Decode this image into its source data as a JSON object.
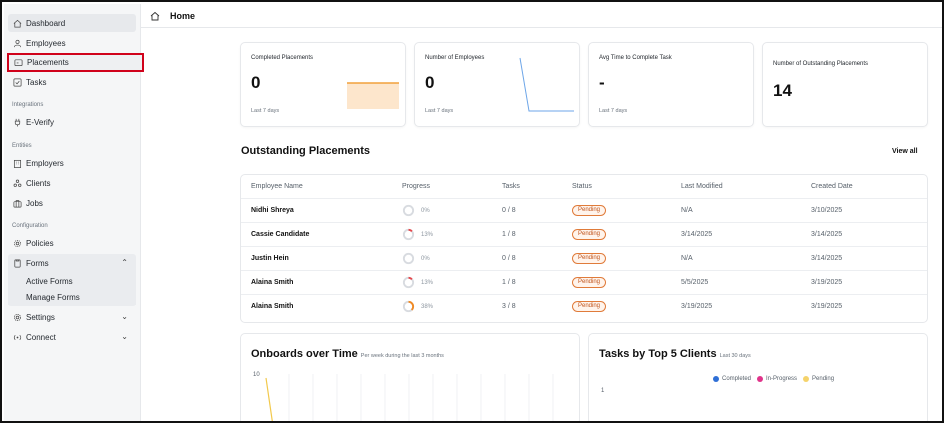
{
  "sidebar": {
    "items": [
      {
        "label": "Dashboard",
        "icon": "home-icon"
      },
      {
        "label": "Employees",
        "icon": "user-icon"
      },
      {
        "label": "Placements",
        "icon": "placement-icon"
      },
      {
        "label": "Tasks",
        "icon": "checkbox-icon"
      }
    ],
    "integrations_heading": "Integrations",
    "everify_label": "E-Verify",
    "entities_heading": "Entities",
    "entities": [
      {
        "label": "Employers",
        "icon": "building-icon"
      },
      {
        "label": "Clients",
        "icon": "clients-icon"
      },
      {
        "label": "Jobs",
        "icon": "jobs-icon"
      }
    ],
    "configuration_heading": "Configuration",
    "policies_label": "Policies",
    "forms_label": "Forms",
    "forms_sub": [
      "Active Forms",
      "Manage Forms"
    ],
    "settings_label": "Settings",
    "connect_label": "Connect"
  },
  "header": {
    "title": "Home"
  },
  "cards": [
    {
      "label": "Completed Placements",
      "value": "0",
      "sub": "Last 7 days"
    },
    {
      "label": "Number of Employees",
      "value": "0",
      "sub": "Last 7 days"
    },
    {
      "label": "Avg Time to Complete Task",
      "value": "-",
      "sub": "Last 7 days"
    },
    {
      "label": "Number of Outstanding Placements",
      "value": "14",
      "sub": ""
    }
  ],
  "outstanding": {
    "title": "Outstanding Placements",
    "view_all": "View all",
    "columns": [
      "Employee Name",
      "Progress",
      "Tasks",
      "Status",
      "Last Modified",
      "Created Date"
    ],
    "rows": [
      {
        "name": "Nidhi Shreya",
        "progress": "0%",
        "progress_frac": 0,
        "tasks": "0 / 8",
        "status": "Pending",
        "modified": "N/A",
        "created": "3/10/2025"
      },
      {
        "name": "Cassie Candidate",
        "progress": "13%",
        "progress_frac": 0.13,
        "tasks": "1 / 8",
        "status": "Pending",
        "modified": "3/14/2025",
        "created": "3/14/2025"
      },
      {
        "name": "Justin Hein",
        "progress": "0%",
        "progress_frac": 0,
        "tasks": "0 / 8",
        "status": "Pending",
        "modified": "N/A",
        "created": "3/14/2025"
      },
      {
        "name": "Alaina Smith",
        "progress": "13%",
        "progress_frac": 0.13,
        "tasks": "1 / 8",
        "status": "Pending",
        "modified": "5/5/2025",
        "created": "3/19/2025"
      },
      {
        "name": "Alaina Smith",
        "progress": "38%",
        "progress_frac": 0.38,
        "tasks": "3 / 8",
        "status": "Pending",
        "modified": "3/19/2025",
        "created": "3/19/2025"
      }
    ]
  },
  "onboards": {
    "title": "Onboards over Time",
    "subtitle": "Per week during the last 3 months",
    "y_top": "10"
  },
  "tasks_clients": {
    "title": "Tasks by Top 5 Clients",
    "subtitle": "Last 30 days",
    "y_tick": "1",
    "legend": [
      {
        "label": "Completed",
        "color": "#2f6fd6"
      },
      {
        "label": "In-Progress",
        "color": "#e0338a"
      },
      {
        "label": "Pending",
        "color": "#f5d36b"
      }
    ]
  },
  "colors": {
    "accent_orange": "#f2a13b",
    "accent_blue": "#4a90e2",
    "badge_orange": "#e07b3a",
    "highlight_red": "#d0021b"
  }
}
